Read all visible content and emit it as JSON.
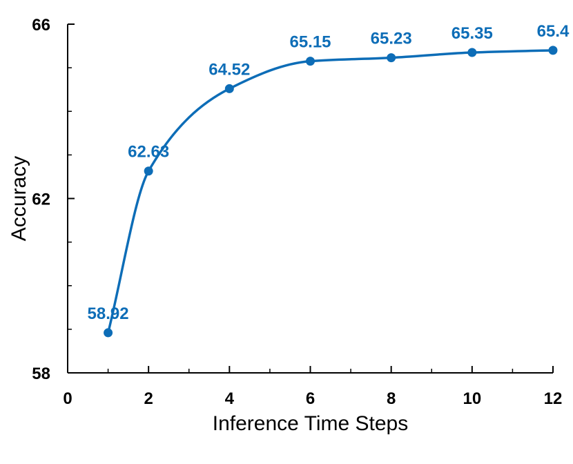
{
  "chart_data": {
    "type": "line",
    "title": "",
    "xlabel": "Inference Time Steps",
    "ylabel": "Accuracy",
    "xlim": [
      0,
      12
    ],
    "ylim": [
      58,
      66
    ],
    "x_ticks": [
      0,
      2,
      4,
      6,
      8,
      10,
      12
    ],
    "x_minor_ticks": [
      1,
      3,
      5,
      7,
      9,
      11
    ],
    "y_ticks": [
      58,
      62,
      66
    ],
    "y_minor_ticks": [
      59,
      60,
      61,
      63,
      64,
      65
    ],
    "grid": false,
    "legend": "none",
    "color": "#0d6db7",
    "series": [
      {
        "x": [
          1,
          2,
          4,
          6,
          8,
          10,
          12
        ],
        "y": [
          58.92,
          62.63,
          64.52,
          65.15,
          65.23,
          65.35,
          65.4
        ],
        "labels": [
          "58.92",
          "62.63",
          "64.52",
          "65.15",
          "65.23",
          "65.35",
          "65.4"
        ]
      }
    ]
  }
}
